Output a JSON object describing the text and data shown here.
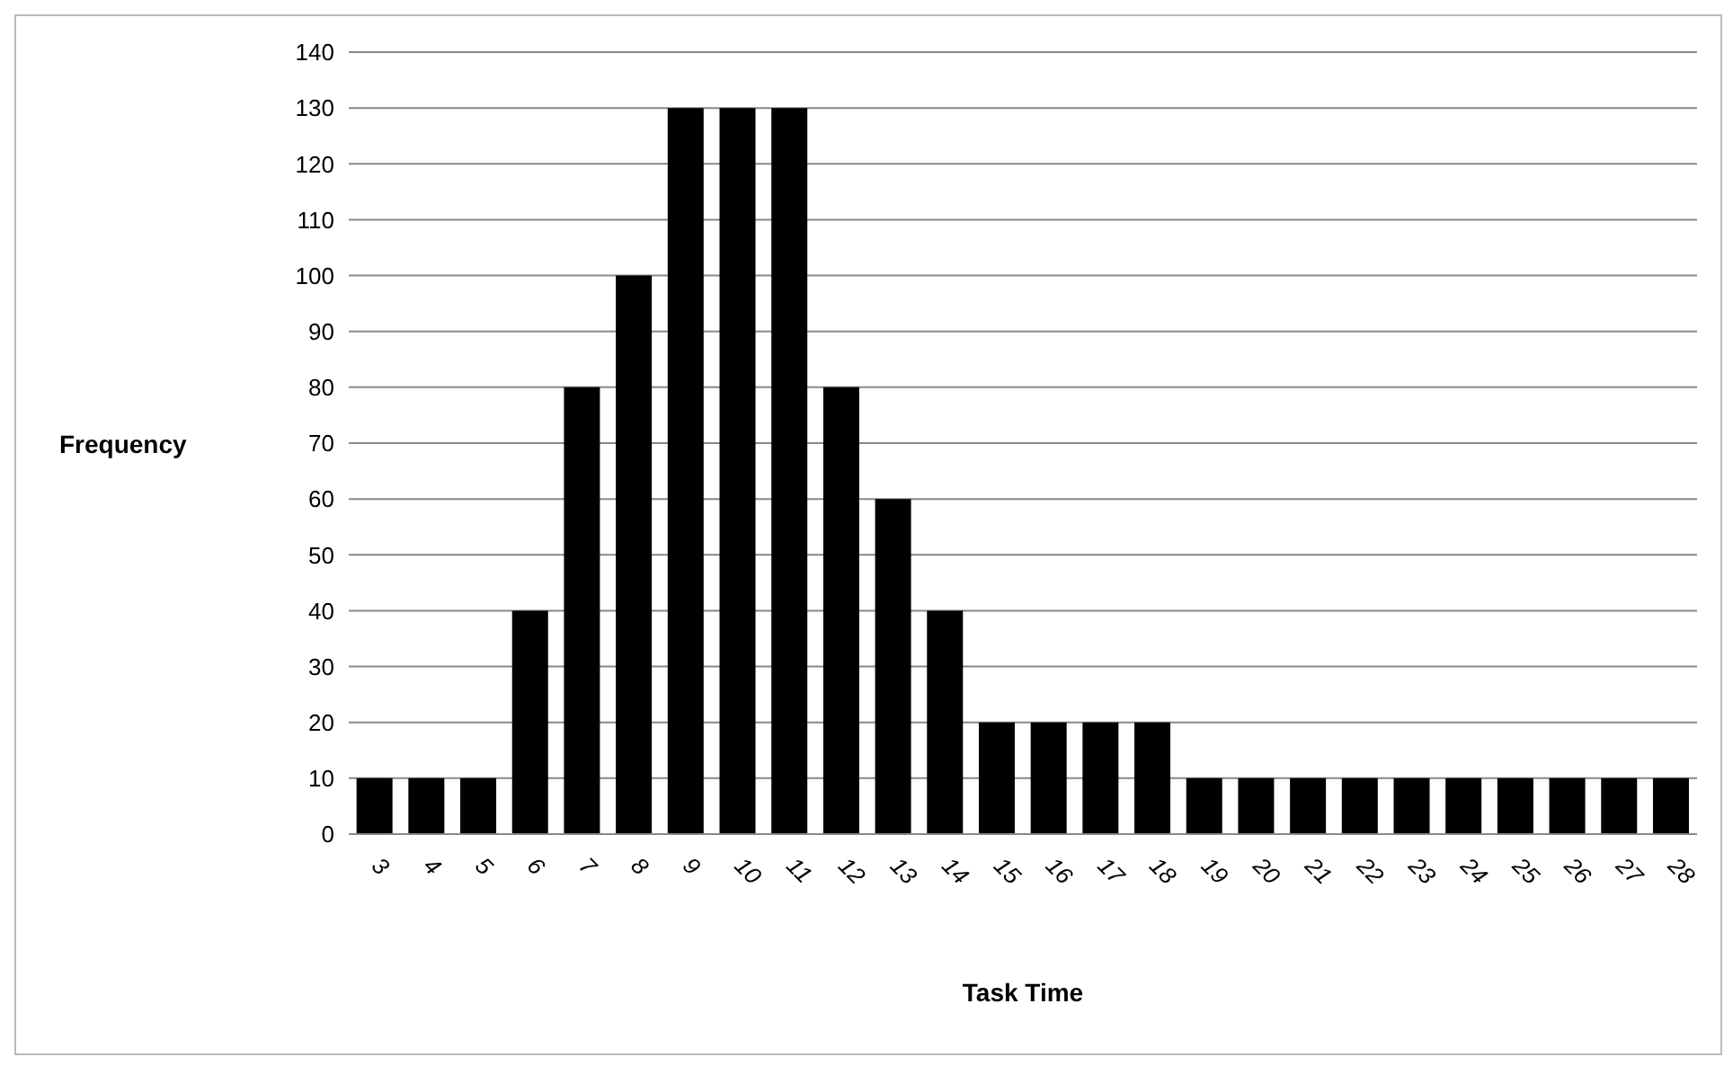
{
  "chart_data": {
    "type": "bar",
    "xlabel": "Task Time",
    "ylabel": "Frequency",
    "categories": [
      "3",
      "4",
      "5",
      "6",
      "7",
      "8",
      "9",
      "10",
      "11",
      "12",
      "13",
      "14",
      "15",
      "16",
      "17",
      "18",
      "19",
      "20",
      "21",
      "22",
      "23",
      "24",
      "25",
      "26",
      "27",
      "28"
    ],
    "values": [
      10,
      10,
      10,
      40,
      80,
      100,
      130,
      130,
      130,
      80,
      60,
      40,
      20,
      20,
      20,
      20,
      10,
      10,
      10,
      10,
      10,
      10,
      10,
      10,
      10,
      10
    ],
    "color": "#000000",
    "ylim": [
      0,
      140
    ],
    "yticks": [
      0,
      10,
      20,
      30,
      40,
      50,
      60,
      70,
      80,
      90,
      100,
      110,
      120,
      130,
      140
    ],
    "grid": "y",
    "legend": false
  }
}
